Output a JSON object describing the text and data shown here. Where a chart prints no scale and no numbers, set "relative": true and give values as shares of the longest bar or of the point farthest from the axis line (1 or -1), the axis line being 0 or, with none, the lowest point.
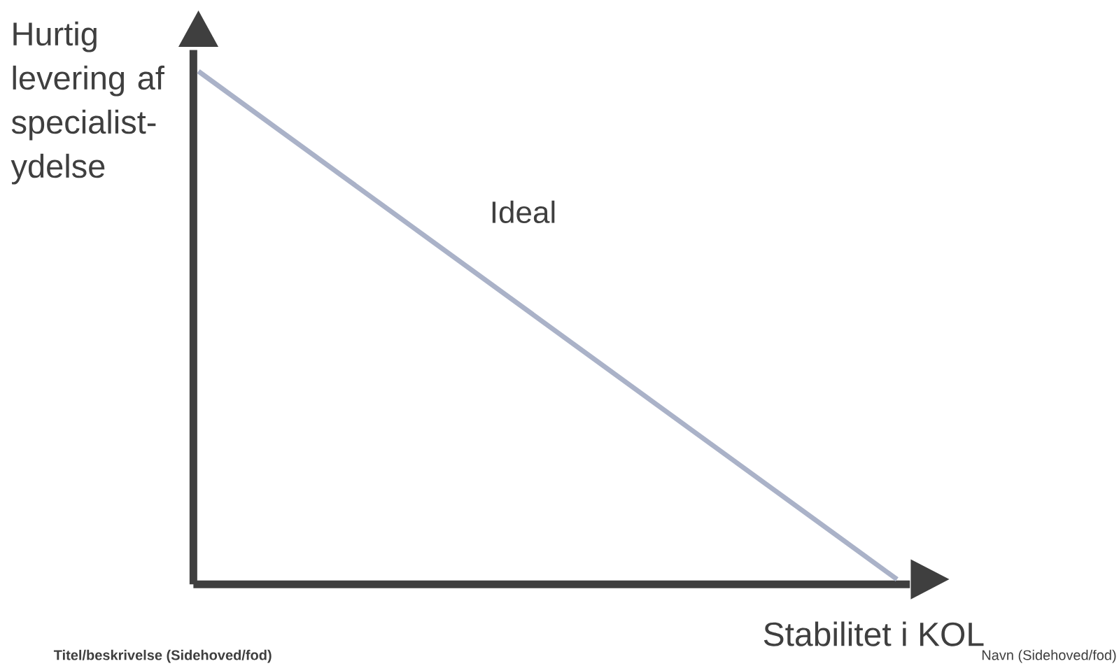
{
  "chart_data": {
    "type": "line",
    "relative": true,
    "xlabel": "Stabilitet i KOL",
    "ylabel": "Hurtig levering af specialist-ydelse",
    "categories": [
      null,
      null
    ],
    "series": [
      {
        "color": "#aab2c8",
        "values": [
          1,
          0
        ]
      }
    ],
    "marker": "none",
    "annotations": [
      "Ideal",
      "**Titel/beskrivelse (Sidehoved/fod)**",
      "Navn (Sidehoved/fod)"
    ]
  }
}
